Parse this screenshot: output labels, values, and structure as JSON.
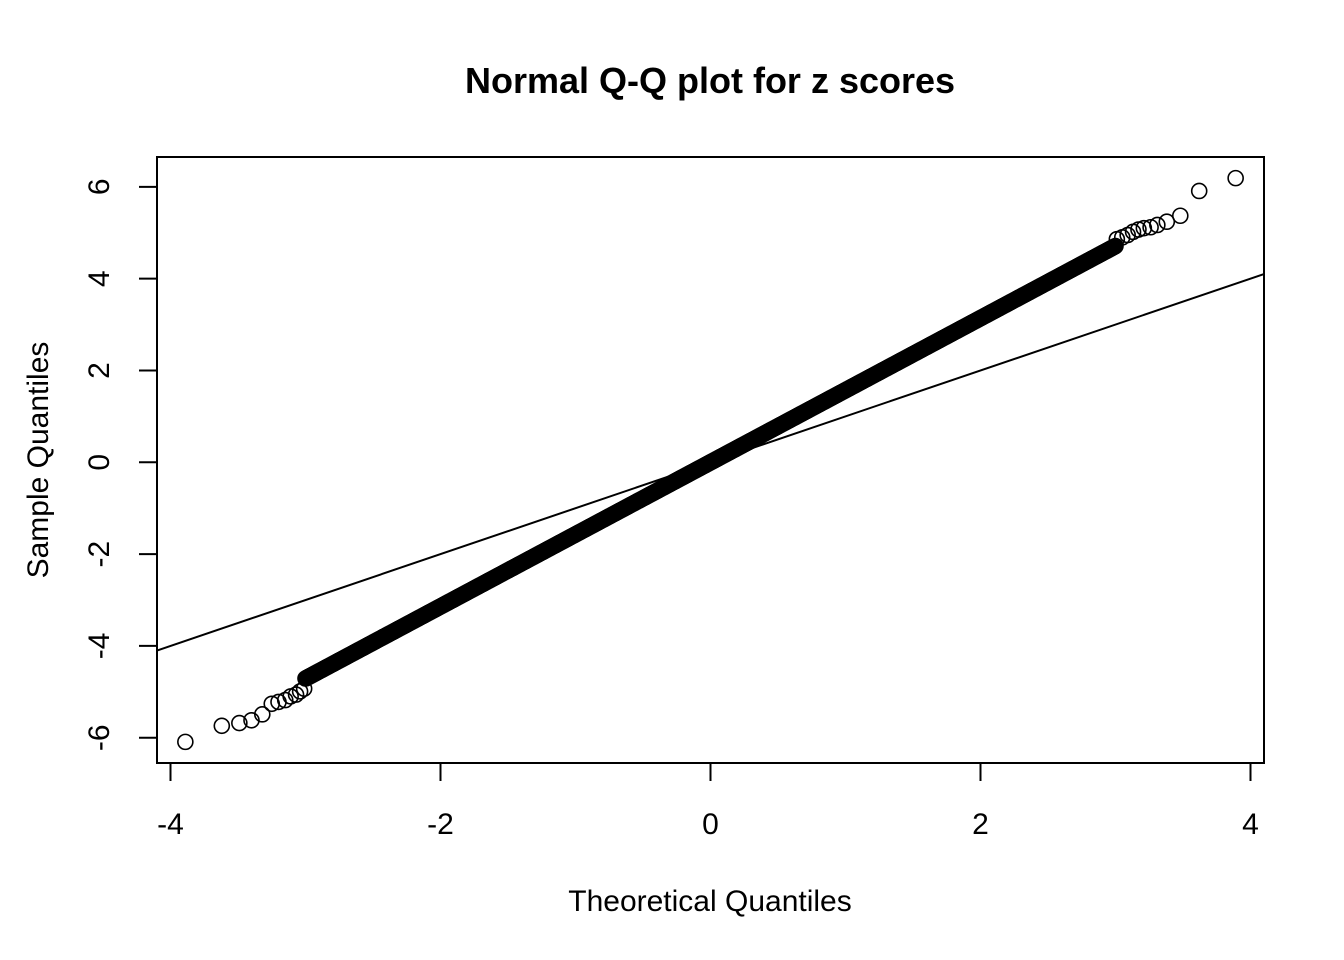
{
  "chart_data": {
    "type": "scatter",
    "subtype": "normal-qq",
    "title": "Normal Q-Q plot for z scores",
    "xlabel": "Theoretical Quantiles",
    "ylabel": "Sample Quantiles",
    "xlim": [
      -4.1,
      4.1
    ],
    "ylim": [
      -6.55,
      6.65
    ],
    "xticks": [
      -4,
      -2,
      0,
      2,
      4
    ],
    "yticks": [
      -6,
      -4,
      -2,
      0,
      2,
      4,
      6
    ],
    "xtick_labels": [
      "-4",
      "-2",
      "0",
      "2",
      "4"
    ],
    "ytick_labels": [
      "-6",
      "-4",
      "-2",
      "0",
      "2",
      "4",
      "6"
    ],
    "grid": false,
    "legend": "none",
    "marker": "open-circle",
    "series": [
      {
        "bulk_slope": 1.57,
        "bulk_range": [
          -3.0,
          3.0
        ],
        "points": [
          {
            "x": -3.89,
            "y": -6.09
          },
          {
            "x": -3.62,
            "y": -5.74
          },
          {
            "x": -3.49,
            "y": -5.68
          },
          {
            "x": -3.4,
            "y": -5.62
          },
          {
            "x": -3.32,
            "y": -5.49
          },
          {
            "x": -3.25,
            "y": -5.26
          },
          {
            "x": -3.2,
            "y": -5.22
          },
          {
            "x": -3.15,
            "y": -5.18
          },
          {
            "x": -3.11,
            "y": -5.1
          },
          {
            "x": -3.07,
            "y": -5.06
          },
          {
            "x": -3.04,
            "y": -4.99
          },
          {
            "x": -3.01,
            "y": -4.93
          },
          {
            "x": 3.01,
            "y": 4.86
          },
          {
            "x": 3.05,
            "y": 4.9
          },
          {
            "x": 3.09,
            "y": 4.95
          },
          {
            "x": 3.13,
            "y": 5.02
          },
          {
            "x": 3.17,
            "y": 5.07
          },
          {
            "x": 3.21,
            "y": 5.1
          },
          {
            "x": 3.26,
            "y": 5.12
          },
          {
            "x": 3.31,
            "y": 5.17
          },
          {
            "x": 3.38,
            "y": 5.24
          },
          {
            "x": 3.48,
            "y": 5.37
          },
          {
            "x": 3.62,
            "y": 5.91
          },
          {
            "x": 3.89,
            "y": 6.19
          }
        ]
      }
    ],
    "reference_line": {
      "intercept": 0,
      "slope": 1
    }
  }
}
